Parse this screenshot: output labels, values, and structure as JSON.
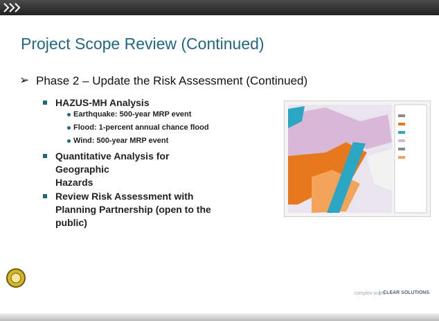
{
  "header": {
    "title": "Project Scope Review (Continued)"
  },
  "content": {
    "heading": "Phase 2 – Update the Risk Assessment (Continued)",
    "items": [
      {
        "lines": [
          "HAZUS-MH Analysis"
        ],
        "subitems": [
          "Earthquake: 500-year MRP event",
          "Flood: 1-percent annual chance flood",
          "Wind: 500-year MRP event"
        ]
      },
      {
        "lines": [
          "Quantitative Analysis for",
          "Geographic",
          "Hazards"
        ]
      },
      {
        "lines": [
          "Review Risk Assessment with",
          "Planning Partnership (open to the",
          "public)"
        ]
      }
    ]
  },
  "footer": {
    "tagline": "complex world",
    "brand": "CLEAR SOLUTIONS"
  }
}
